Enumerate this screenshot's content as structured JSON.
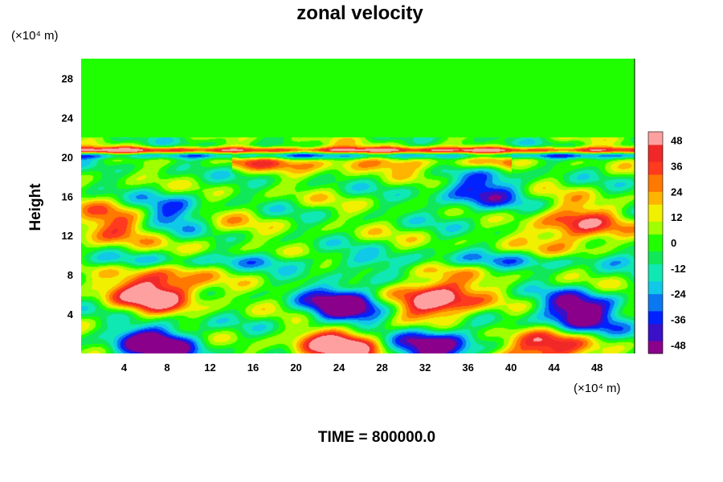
{
  "chart_data": {
    "type": "heatmap",
    "title": "zonal velocity",
    "ylabel": "Height",
    "xlabel": "",
    "x_unit": "(×10⁴ m)",
    "y_unit": "(×10⁴ m)",
    "xlim": [
      0,
      51.5
    ],
    "ylim": [
      0,
      30
    ],
    "x_ticks": [
      4,
      8,
      12,
      16,
      20,
      24,
      28,
      32,
      36,
      40,
      44,
      48
    ],
    "y_ticks": [
      4,
      8,
      12,
      16,
      20,
      24,
      28
    ],
    "colorbar": {
      "min": -52,
      "max": 52,
      "tick_values": [
        48,
        36,
        24,
        12,
        0,
        -12,
        -24,
        -36,
        -48
      ],
      "colors": [
        "#8b008b",
        "#3a10c8",
        "#0022ff",
        "#0a78f0",
        "#10c8e8",
        "#10e8b4",
        "#10e85a",
        "#20ff00",
        "#a0ff00",
        "#f0f000",
        "#ffb400",
        "#ff7800",
        "#ff3a1e",
        "#f02828",
        "#ffa0a0"
      ]
    },
    "features": [
      {
        "kind": "jet",
        "x_range": [
          0,
          51.5
        ],
        "y": 20.2,
        "value": -30
      },
      {
        "kind": "jet",
        "x_range": [
          0,
          51.5
        ],
        "y": 20.7,
        "value": 45
      },
      {
        "kind": "band",
        "x_range": [
          16,
          38
        ],
        "y": 19.4,
        "value": 32
      },
      {
        "kind": "blob",
        "x": 3,
        "y": 13,
        "value": 28
      },
      {
        "kind": "blob",
        "x": 11,
        "y": 13.5,
        "value": 22
      },
      {
        "kind": "blob",
        "x": 46,
        "y": 13,
        "value": 34
      },
      {
        "kind": "blob",
        "x": 7,
        "y": 6.3,
        "value": 50
      },
      {
        "kind": "blob",
        "x": 24.5,
        "y": 4.8,
        "value": -50
      },
      {
        "kind": "blob",
        "x": 33,
        "y": 5.5,
        "value": 50
      },
      {
        "kind": "blob",
        "x": 46,
        "y": 4,
        "value": -48
      },
      {
        "kind": "blob",
        "x": 7,
        "y": 0.8,
        "value": -50
      },
      {
        "kind": "blob",
        "x": 24,
        "y": 0.8,
        "value": 50
      },
      {
        "kind": "blob",
        "x": 33,
        "y": 0.8,
        "value": -45
      },
      {
        "kind": "blob",
        "x": 43,
        "y": 0.6,
        "value": 45
      },
      {
        "kind": "blob",
        "x": 37,
        "y": 16.5,
        "value": -30
      },
      {
        "kind": "blob",
        "x": 9,
        "y": 14,
        "value": -38
      },
      {
        "kind": "band",
        "x_range": [
          0,
          51.5
        ],
        "y": 9.5,
        "value": -20
      }
    ]
  },
  "time_label": "TIME = 800000.0"
}
